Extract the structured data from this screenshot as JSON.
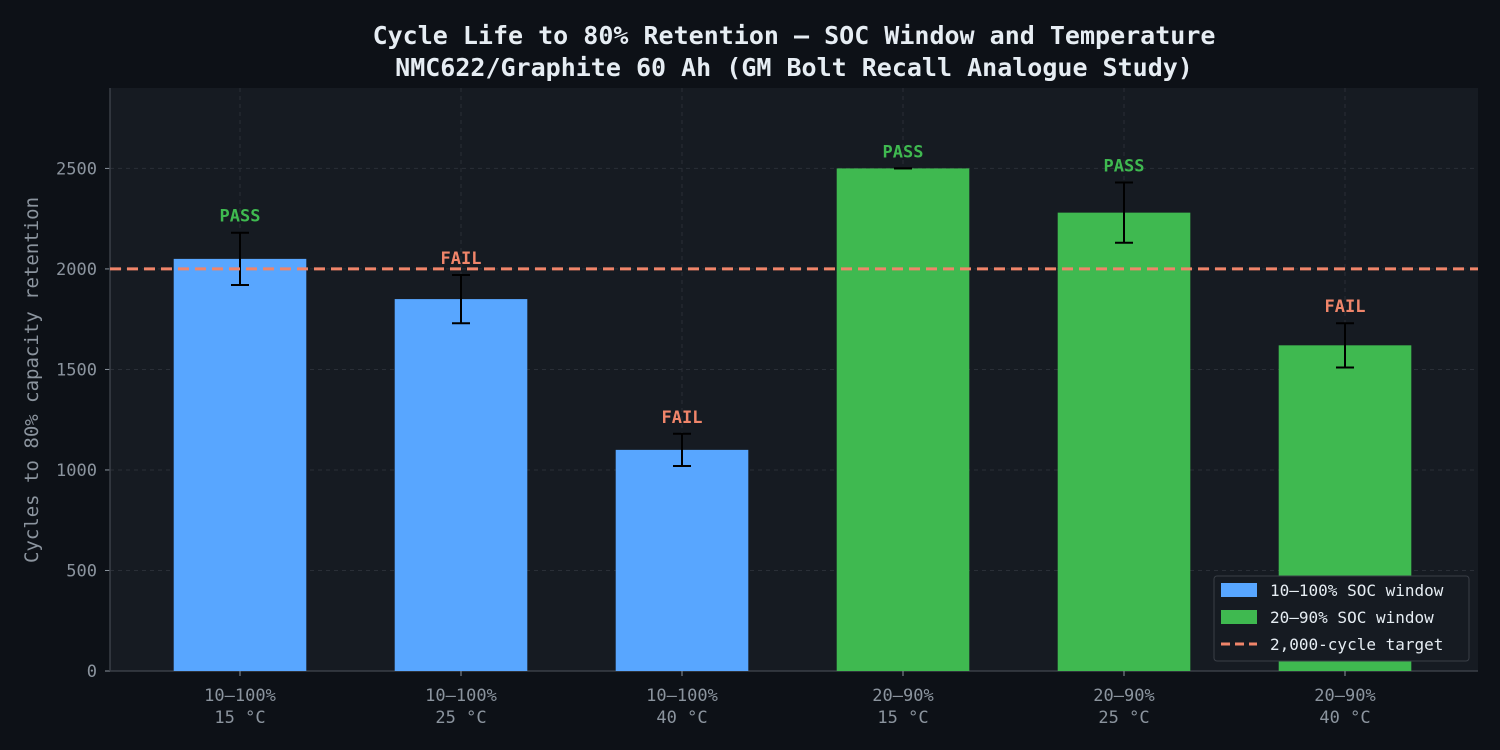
{
  "chart_data": {
    "type": "bar",
    "title": "Cycle Life to 80% Retention — SOC Window and Temperature",
    "subtitle": "NMC622/Graphite 60 Ah (GM Bolt Recall Analogue Study)",
    "xlabel": "",
    "ylabel": "Cycles to 80% capacity retention",
    "ylim": [
      0,
      2900
    ],
    "yticks": [
      0,
      500,
      1000,
      1500,
      2000,
      2500
    ],
    "grid": true,
    "legend_position": "lower-right",
    "categories": [
      [
        "10–100%",
        "15 °C"
      ],
      [
        "10–100%",
        "25 °C"
      ],
      [
        "10–100%",
        "40 °C"
      ],
      [
        "20–90%",
        "15 °C"
      ],
      [
        "20–90%",
        "25 °C"
      ],
      [
        "20–90%",
        "40 °C"
      ]
    ],
    "series": [
      {
        "name": "10–100% SOC window",
        "color": "#58a6ff",
        "values": [
          2050,
          1850,
          1100,
          null,
          null,
          null
        ],
        "errors": [
          130,
          120,
          80,
          null,
          null,
          null
        ]
      },
      {
        "name": "20–90% SOC window",
        "color": "#3fb950",
        "values": [
          null,
          null,
          null,
          2500,
          2280,
          1620
        ],
        "errors": [
          null,
          null,
          null,
          0,
          150,
          110
        ]
      }
    ],
    "status_labels": [
      "PASS",
      "FAIL",
      "FAIL",
      "PASS",
      "PASS",
      "FAIL"
    ],
    "target": {
      "name": "2,000-cycle target",
      "value": 2000,
      "color": "#f0856a",
      "style": "dashed"
    },
    "status_colors": {
      "PASS": "#3fb950",
      "FAIL": "#f0856a"
    }
  },
  "colors": {
    "page_bg": "#0d1117",
    "plot_bg": "#161b22",
    "grid": "#2a2f37",
    "axis": "#3a3f47",
    "text": "#e6edf3",
    "tick_text": "#8b949e"
  }
}
